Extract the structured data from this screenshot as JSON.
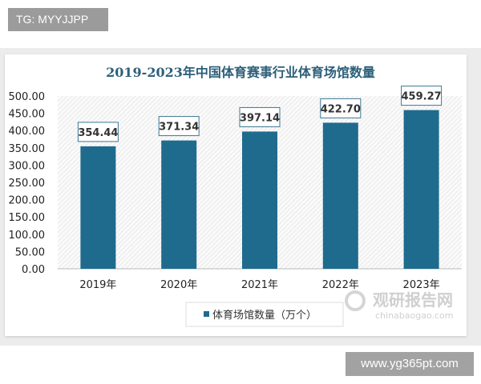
{
  "tag_label": "TG: MYYJJPP",
  "site_label": "www.yg365pt.com",
  "watermark": {
    "name": "观研报告网",
    "url": "chinabaogao.com"
  },
  "colors": {
    "bar": "#1f6b8e",
    "title": "#2d5f7a",
    "label_border": "#3b7893"
  },
  "chart_data": {
    "type": "bar",
    "title": "2019-2023年中国体育赛事行业体育场馆数量",
    "categories": [
      "2019年",
      "2020年",
      "2021年",
      "2022年",
      "2023年"
    ],
    "series": [
      {
        "name": "体育场馆数量（万个）",
        "values": [
          354.44,
          371.34,
          397.14,
          422.7,
          459.27
        ]
      }
    ],
    "data_labels": [
      "354.44",
      "371.34",
      "397.14",
      "422.70",
      "459.27"
    ],
    "yticks": [
      "0.00",
      "50.00",
      "100.00",
      "150.00",
      "200.00",
      "250.00",
      "300.00",
      "350.00",
      "400.00",
      "450.00",
      "500.00"
    ],
    "ylim": [
      0,
      500
    ],
    "xlabel": "",
    "ylabel": "",
    "legend": "bottom",
    "grid": false
  }
}
